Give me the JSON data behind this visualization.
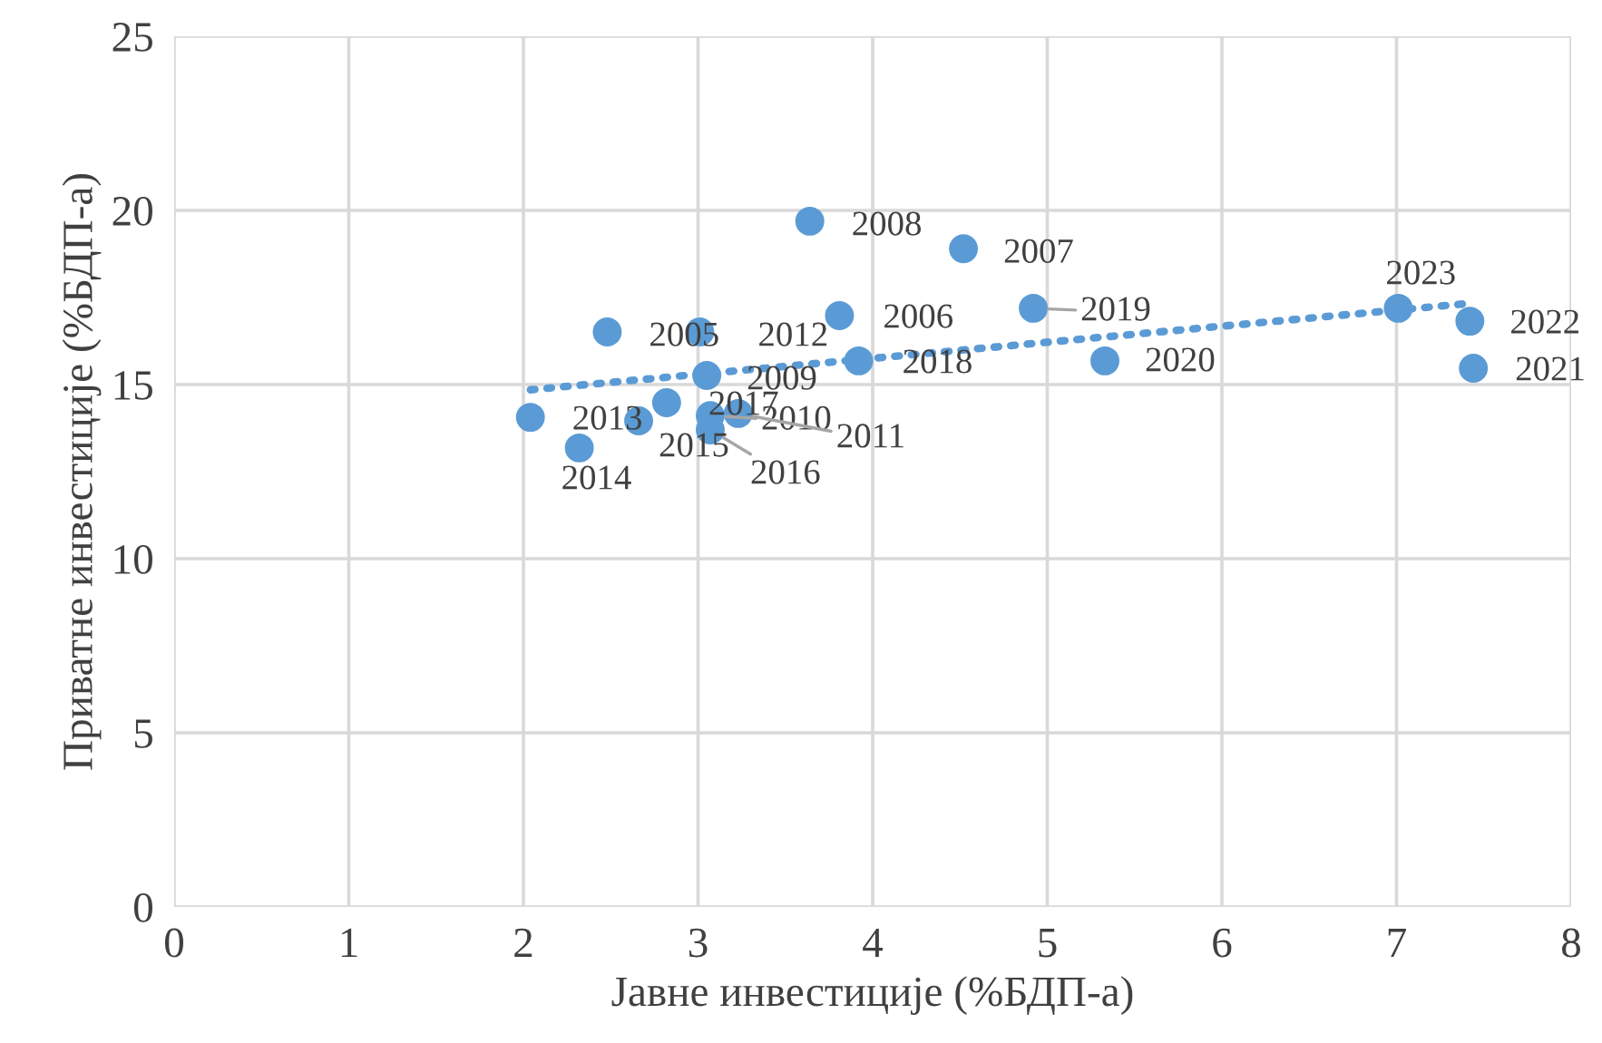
{
  "chart_data": {
    "type": "scatter",
    "xlabel": "Јавне инвестиције (%БДП-а)",
    "ylabel": "Приватне инвестиције (%БДП-а)",
    "xlim": [
      0,
      8
    ],
    "xticks": [
      0,
      1,
      2,
      3,
      4,
      5,
      6,
      7,
      8
    ],
    "ylim": [
      0,
      25
    ],
    "yticks": [
      0,
      5,
      10,
      15,
      20,
      25
    ],
    "grid": true,
    "legend": false,
    "series": [
      {
        "color": "#5b9bd5",
        "marker": "circle",
        "x": [
          2.48,
          3.81,
          4.52,
          3.64,
          3.05,
          3.07,
          3.23,
          3.01,
          2.04,
          2.32,
          2.66,
          3.07,
          2.82,
          3.92,
          4.92,
          5.33,
          7.44,
          7.42,
          7.01
        ],
        "values": [
          16.51,
          16.98,
          18.9,
          19.69,
          15.26,
          14.11,
          14.17,
          16.51,
          14.06,
          13.18,
          13.96,
          13.7,
          14.48,
          15.68,
          17.19,
          15.68,
          15.47,
          16.82,
          17.19
        ]
      },
      {
        "type": "line",
        "color": "#5b9bd5",
        "line_style": "dotted",
        "x": [
          2.04,
          7.44
        ],
        "values": [
          14.85,
          17.34
        ]
      }
    ],
    "annotations": [
      {
        "text": "2005",
        "x": 2.48,
        "y": 16.51
      },
      {
        "text": "2006",
        "x": 3.81,
        "y": 16.98
      },
      {
        "text": "2007",
        "x": 4.52,
        "y": 18.9
      },
      {
        "text": "2008",
        "x": 3.64,
        "y": 19.69
      },
      {
        "text": "2009",
        "x": 3.05,
        "y": 15.26
      },
      {
        "text": "2010",
        "x": 3.07,
        "y": 14.11
      },
      {
        "text": "2011",
        "x": 3.23,
        "y": 14.17
      },
      {
        "text": "2012",
        "x": 3.01,
        "y": 16.51
      },
      {
        "text": "2013",
        "x": 2.04,
        "y": 14.06
      },
      {
        "text": "2014",
        "x": 2.32,
        "y": 13.18
      },
      {
        "text": "2015",
        "x": 2.66,
        "y": 13.96
      },
      {
        "text": "2016",
        "x": 3.07,
        "y": 13.7
      },
      {
        "text": "2017",
        "x": 2.82,
        "y": 14.48
      },
      {
        "text": "2018",
        "x": 3.92,
        "y": 15.68
      },
      {
        "text": "2019",
        "x": 4.92,
        "y": 17.19
      },
      {
        "text": "2020",
        "x": 5.33,
        "y": 15.68
      },
      {
        "text": "2021",
        "x": 7.44,
        "y": 15.47
      },
      {
        "text": "2022",
        "x": 7.42,
        "y": 16.82
      },
      {
        "text": "2023",
        "x": 7.01,
        "y": 17.19
      }
    ]
  }
}
